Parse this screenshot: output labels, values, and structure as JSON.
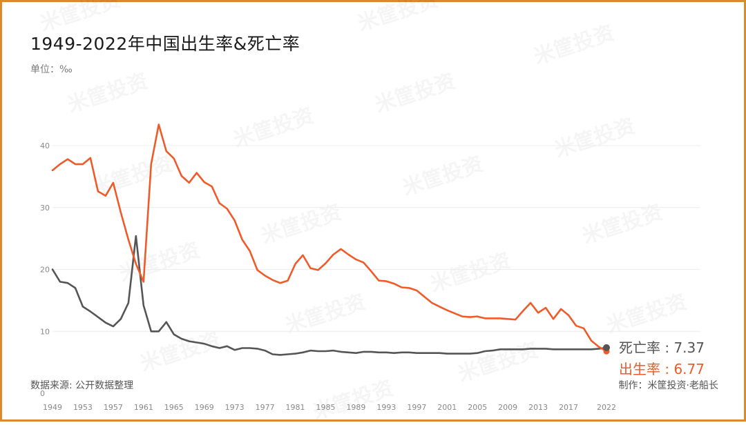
{
  "title": "1949-2022年中国出生率&死亡率",
  "unit": "单位：‰",
  "source": "数据来源: 公开数据整理",
  "credit": "制作：米筐投资·老船长",
  "watermark": "米筐投资",
  "colors": {
    "birth": "#f05a28",
    "death": "#555555",
    "grid": "#ececec",
    "border": "#d98a2b"
  },
  "chart_data": {
    "type": "line",
    "ylim": [
      0,
      40
    ],
    "yticks": [
      0,
      10,
      20,
      30,
      40
    ],
    "xticks": [
      1949,
      1953,
      1957,
      1961,
      1965,
      1969,
      1973,
      1977,
      1981,
      1985,
      1989,
      1993,
      1997,
      2001,
      2005,
      2009,
      2013,
      2017,
      2022
    ],
    "x": [
      1949,
      1950,
      1951,
      1952,
      1953,
      1954,
      1955,
      1956,
      1957,
      1958,
      1959,
      1960,
      1961,
      1962,
      1963,
      1964,
      1965,
      1966,
      1967,
      1968,
      1969,
      1970,
      1971,
      1972,
      1973,
      1974,
      1975,
      1976,
      1977,
      1978,
      1979,
      1980,
      1981,
      1982,
      1983,
      1984,
      1985,
      1986,
      1987,
      1988,
      1989,
      1990,
      1991,
      1992,
      1993,
      1994,
      1995,
      1996,
      1997,
      1998,
      1999,
      2000,
      2001,
      2002,
      2003,
      2004,
      2005,
      2006,
      2007,
      2008,
      2009,
      2010,
      2011,
      2012,
      2013,
      2014,
      2015,
      2016,
      2017,
      2018,
      2019,
      2020,
      2021,
      2022
    ],
    "series": [
      {
        "name": "出生率",
        "end_label": "出生率 : 6.77",
        "values": [
          36.0,
          37.0,
          37.8,
          37.0,
          37.0,
          38.0,
          32.6,
          31.9,
          34.0,
          29.2,
          24.8,
          20.9,
          18.0,
          37.0,
          43.4,
          39.1,
          37.9,
          35.1,
          34.0,
          35.6,
          34.1,
          33.4,
          30.7,
          29.8,
          27.9,
          24.8,
          23.0,
          19.9,
          19.0,
          18.3,
          17.8,
          18.2,
          20.9,
          22.3,
          20.2,
          19.9,
          21.0,
          22.4,
          23.3,
          22.4,
          21.6,
          21.1,
          19.7,
          18.2,
          18.1,
          17.7,
          17.1,
          17.0,
          16.6,
          15.6,
          14.6,
          14.0,
          13.4,
          12.9,
          12.4,
          12.3,
          12.4,
          12.1,
          12.1,
          12.1,
          12.0,
          11.9,
          13.3,
          14.6,
          13.0,
          13.8,
          12.0,
          13.6,
          12.6,
          10.9,
          10.5,
          8.5,
          7.5,
          6.77
        ]
      },
      {
        "name": "死亡率",
        "end_label": "死亡率 : 7.37",
        "values": [
          20.0,
          18.0,
          17.8,
          17.0,
          14.0,
          13.2,
          12.3,
          11.4,
          10.8,
          12.0,
          14.6,
          25.4,
          14.2,
          10.0,
          10.0,
          11.5,
          9.5,
          8.8,
          8.4,
          8.2,
          8.0,
          7.6,
          7.3,
          7.6,
          7.0,
          7.3,
          7.3,
          7.2,
          6.9,
          6.3,
          6.2,
          6.3,
          6.4,
          6.6,
          6.9,
          6.8,
          6.8,
          6.9,
          6.7,
          6.6,
          6.5,
          6.7,
          6.7,
          6.6,
          6.6,
          6.5,
          6.6,
          6.6,
          6.5,
          6.5,
          6.5,
          6.5,
          6.4,
          6.4,
          6.4,
          6.4,
          6.5,
          6.8,
          6.9,
          7.1,
          7.1,
          7.1,
          7.1,
          7.2,
          7.2,
          7.2,
          7.1,
          7.1,
          7.1,
          7.1,
          7.1,
          7.1,
          7.2,
          7.37
        ]
      }
    ]
  }
}
